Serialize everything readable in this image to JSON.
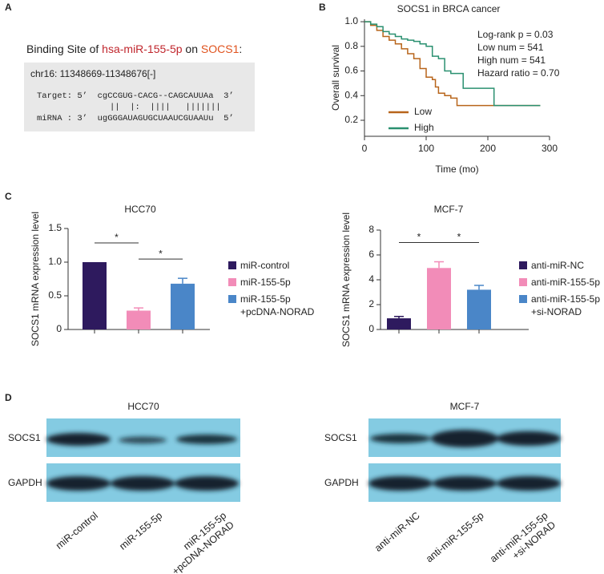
{
  "panel_labels": [
    "A",
    "B",
    "C",
    "D"
  ],
  "binding_site": {
    "title_parts": [
      "Binding Site of ",
      "hsa-miR-155-5p",
      " on ",
      "SOCS1",
      ":"
    ],
    "locus": "chr16: 11348669-11348676[-]",
    "target": "Target: 5’  cgCCGUG-CACG--CAGCAUUAa  3’",
    "pairing": "||  |:  ||||   |||||||",
    "mirna": "miRNA : 3’  ugGGGAUAGUGCUAAUCGUAAUu  5’"
  },
  "chart_data": [
    {
      "type": "line",
      "step": true,
      "title": "SOCS1 in BRCA cancer",
      "xlabel": "Time (mo)",
      "ylabel": "Overall survival",
      "xlim": [
        0,
        300
      ],
      "xticks": [
        0,
        100,
        200,
        300
      ],
      "ylim": [
        0.07,
        1.02
      ],
      "yticks": [
        0.2,
        0.4,
        0.6,
        0.8,
        {
          "value": 1,
          "label": "1.0"
        }
      ],
      "legend": "lower left",
      "annotations": [
        "Log-rank p = 0.03",
        "Low num = 541",
        "High num = 541",
        "Hazard ratio = 0.70"
      ],
      "series": [
        {
          "name": "Low",
          "color": "#b8651b",
          "x": [
            0,
            10,
            20,
            30,
            40,
            50,
            60,
            70,
            80,
            90,
            100,
            110,
            115,
            120,
            130,
            140,
            150,
            180,
            210,
            240,
            285
          ],
          "values": [
            1.0,
            0.97,
            0.93,
            0.88,
            0.85,
            0.82,
            0.78,
            0.74,
            0.7,
            0.62,
            0.55,
            0.53,
            0.47,
            0.42,
            0.4,
            0.38,
            0.32,
            0.32,
            0.32,
            0.32,
            0.32
          ]
        },
        {
          "name": "High",
          "color": "#2a9070",
          "x": [
            0,
            10,
            20,
            30,
            40,
            50,
            60,
            70,
            80,
            90,
            100,
            110,
            120,
            130,
            140,
            150,
            160,
            200,
            210,
            220,
            285
          ],
          "values": [
            1.0,
            0.98,
            0.96,
            0.92,
            0.9,
            0.88,
            0.86,
            0.85,
            0.84,
            0.82,
            0.8,
            0.72,
            0.7,
            0.6,
            0.58,
            0.58,
            0.46,
            0.46,
            0.32,
            0.32,
            0.32
          ]
        }
      ]
    },
    {
      "type": "bar",
      "title": "HCC70",
      "ylabel": "SOCS1 mRNA expression level",
      "categories": [
        "miR-control",
        "miR-155-5p",
        "miR-155-5p\n+pcDNA-NORAD"
      ],
      "values": [
        1.0,
        0.28,
        0.68
      ],
      "errors": [
        0,
        0.04,
        0.08
      ],
      "colors": [
        "#2e1a5e",
        "#f28cb8",
        "#4a86c8"
      ],
      "ylim": [
        0,
        1.5
      ],
      "yticks": [
        0,
        0.5,
        {
          "value": 1,
          "label": "1.0"
        },
        1.5
      ],
      "significance": [
        {
          "pair": [
            0,
            1
          ],
          "label": "*"
        },
        {
          "pair": [
            1,
            2
          ],
          "label": "*"
        }
      ]
    },
    {
      "type": "bar",
      "title": "MCF-7",
      "ylabel": "SOCS1 mRNA expression level",
      "categories": [
        "anti-miR-NC",
        "anti-miR-155-5p",
        "anti-miR-155-5p\n+si-NORAD"
      ],
      "values": [
        0.9,
        4.95,
        3.2
      ],
      "errors": [
        0.15,
        0.5,
        0.35
      ],
      "colors": [
        "#2e1a5e",
        "#f28cb8",
        "#4a86c8"
      ],
      "ylim": [
        0,
        8
      ],
      "yticks": [
        0,
        2,
        4,
        6,
        8
      ],
      "significance": [
        {
          "pair": [
            0,
            1
          ],
          "label": "*"
        },
        {
          "pair": [
            1,
            2
          ],
          "label": "*"
        }
      ]
    }
  ],
  "blots": [
    {
      "title": "HCC70",
      "rows": [
        "SOCS1",
        "GAPDH"
      ],
      "lanes": [
        "miR-control",
        "miR-155-5p",
        "miR-155-5p\n+pcDNA-NORAD"
      ]
    },
    {
      "title": "MCF-7",
      "rows": [
        "SOCS1",
        "GAPDH"
      ],
      "lanes": [
        "anti-miR-NC",
        "anti-miR-155-5p",
        "anti-miR-155-5p\n+si-NORAD"
      ]
    }
  ]
}
